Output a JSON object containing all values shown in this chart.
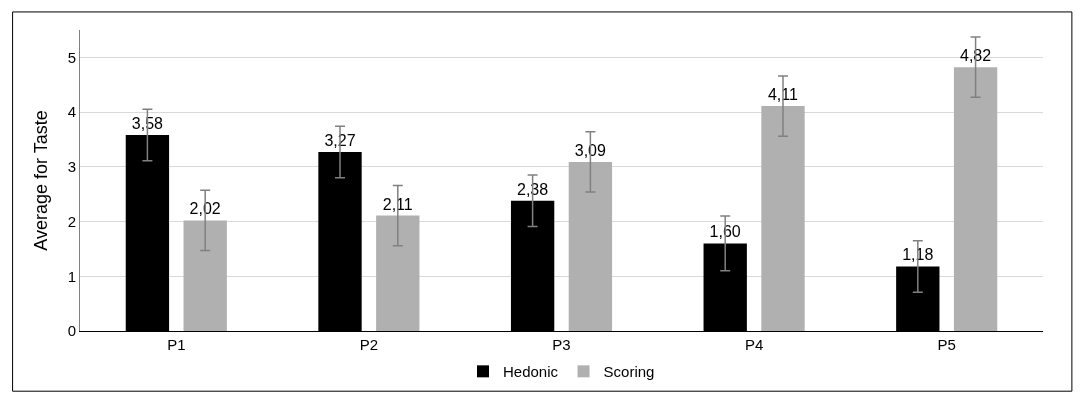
{
  "chart_data": {
    "type": "bar",
    "ylabel": "Average for Taste",
    "categories": [
      "P1",
      "P2",
      "P3",
      "P4",
      "P5"
    ],
    "series": [
      {
        "name": "Hedonic",
        "color": "#000000",
        "values": [
          3.58,
          3.27,
          2.38,
          1.6,
          1.18
        ],
        "errors": [
          0.47,
          0.47,
          0.47,
          0.5,
          0.47
        ],
        "value_labels": [
          "3,58",
          "3,27",
          "2,38",
          "1,60",
          "1,18"
        ]
      },
      {
        "name": "Scoring",
        "color": "#b0b0b0",
        "values": [
          2.02,
          2.11,
          3.09,
          4.11,
          4.82
        ],
        "errors": [
          0.55,
          0.55,
          0.55,
          0.55,
          0.55
        ],
        "value_labels": [
          "2,02",
          "2,11",
          "3,09",
          "4,11",
          "4,82"
        ]
      }
    ],
    "ylim": [
      0,
      5.5
    ],
    "yticks": [
      0,
      1,
      2,
      3,
      4,
      5
    ],
    "grid": "y",
    "legend": "bottom"
  }
}
